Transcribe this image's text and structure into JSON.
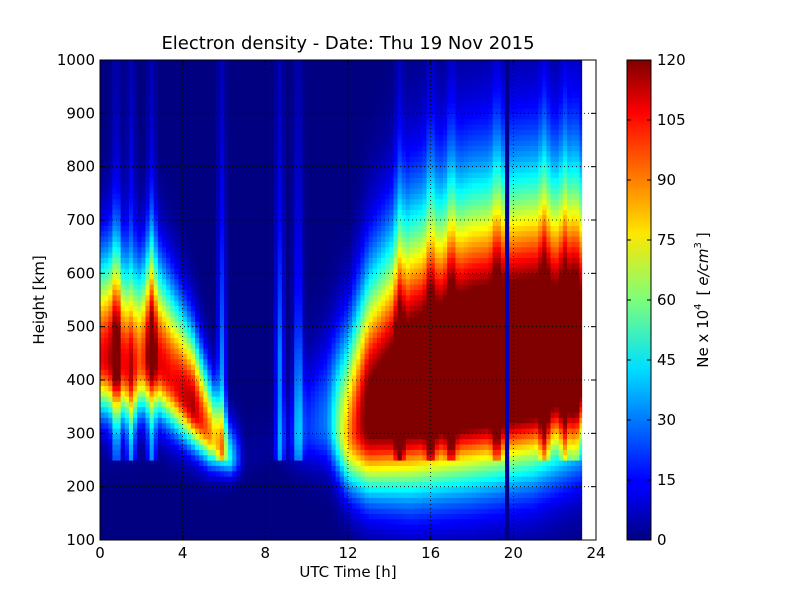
{
  "chart_data": {
    "type": "heatmap",
    "title": "Electron density - Date: Thu 19 Nov 2015",
    "xlabel": "UTC Time [h]",
    "ylabel": "Height [km]",
    "xlim": [
      0,
      24
    ],
    "ylim": [
      100,
      1000
    ],
    "x_ticks": [
      0,
      4,
      8,
      12,
      16,
      20,
      24
    ],
    "y_ticks": [
      100,
      200,
      300,
      400,
      500,
      600,
      700,
      800,
      900,
      1000
    ],
    "grid": true,
    "colorbar": {
      "label_main": "Ne x 10",
      "label_exp": "4",
      "label_unit_open": "[",
      "label_unit": "e/cm",
      "label_unit_exp": "3",
      "label_unit_close": "]",
      "colormap": "jet",
      "range": [
        0,
        120
      ],
      "ticks": [
        0,
        15,
        30,
        45,
        60,
        75,
        90,
        105,
        120
      ]
    },
    "data_extent_hours": [
      0,
      23.3
    ],
    "layer_profile": [
      {
        "t": 0.0,
        "peak_km": 440,
        "peak_ne": 105,
        "width_km": 95
      },
      {
        "t": 0.8,
        "peak_km": 440,
        "peak_ne": 115,
        "width_km": 100
      },
      {
        "t": 1.5,
        "peak_km": 420,
        "peak_ne": 85,
        "width_km": 90
      },
      {
        "t": 2.5,
        "peak_km": 450,
        "peak_ne": 110,
        "width_km": 95
      },
      {
        "t": 3.5,
        "peak_km": 400,
        "peak_ne": 105,
        "width_km": 85
      },
      {
        "t": 4.5,
        "peak_km": 350,
        "peak_ne": 115,
        "width_km": 70
      },
      {
        "t": 5.3,
        "peak_km": 300,
        "peak_ne": 90,
        "width_km": 55
      },
      {
        "t": 6.3,
        "peak_km": 255,
        "peak_ne": 45,
        "width_km": 35
      },
      {
        "t": 7.0,
        "peak_km": 250,
        "peak_ne": 3,
        "width_km": 30
      },
      {
        "t": 8.5,
        "peak_km": 280,
        "peak_ne": 3,
        "width_km": 30
      },
      {
        "t": 9.5,
        "peak_km": 300,
        "peak_ne": 15,
        "width_km": 60
      },
      {
        "t": 11.0,
        "peak_km": 320,
        "peak_ne": 30,
        "width_km": 80
      },
      {
        "t": 12.0,
        "peak_km": 300,
        "peak_ne": 85,
        "width_km": 100
      },
      {
        "t": 13.0,
        "peak_km": 330,
        "peak_ne": 130,
        "width_km": 130
      },
      {
        "t": 15.0,
        "peak_km": 370,
        "peak_ne": 150,
        "width_km": 160
      },
      {
        "t": 18.0,
        "peak_km": 400,
        "peak_ne": 160,
        "width_km": 170
      },
      {
        "t": 21.0,
        "peak_km": 420,
        "peak_ne": 160,
        "width_km": 170
      },
      {
        "t": 23.3,
        "peak_km": 440,
        "peak_ne": 140,
        "width_km": 160
      }
    ],
    "vertical_streaks_hours": [
      0.8,
      1.5,
      2.5,
      5.9,
      8.7,
      9.6,
      14.5,
      16.0,
      17.0,
      19.2,
      21.5,
      22.5,
      23.0
    ],
    "gap_hours": [
      19.6,
      19.8
    ]
  }
}
